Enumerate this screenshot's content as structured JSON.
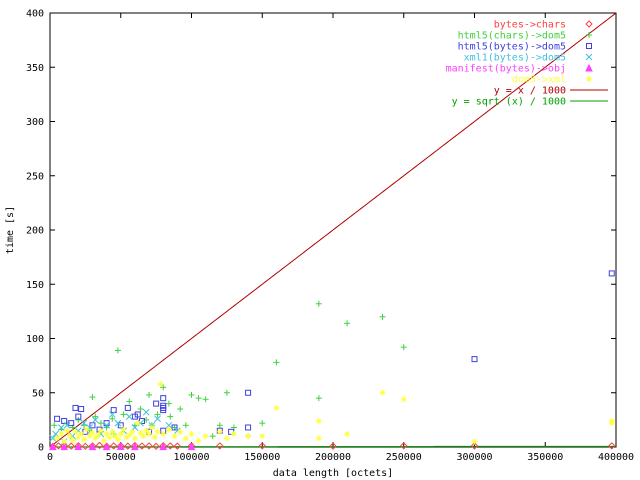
{
  "chart_data": {
    "type": "scatter",
    "xlabel": "data length [octets]",
    "ylabel": "time [s]",
    "xlim": [
      0,
      400000
    ],
    "ylim": [
      0,
      400
    ],
    "x_ticks": [
      0,
      50000,
      100000,
      150000,
      200000,
      250000,
      300000,
      350000,
      400000
    ],
    "y_ticks": [
      0,
      50,
      100,
      150,
      200,
      250,
      300,
      350,
      400
    ],
    "grid": false,
    "legend_position": "top-right",
    "series": [
      {
        "name": "bytes->chars",
        "marker": "diamond",
        "color": "#ff4040",
        "points": [
          [
            2000,
            0.5
          ],
          [
            6000,
            1
          ],
          [
            10000,
            1
          ],
          [
            15000,
            0.8
          ],
          [
            20000,
            1.2
          ],
          [
            25000,
            0.6
          ],
          [
            30000,
            1
          ],
          [
            35000,
            1.5
          ],
          [
            40000,
            0.7
          ],
          [
            45000,
            1
          ],
          [
            50000,
            1
          ],
          [
            55000,
            0.8
          ],
          [
            60000,
            1.3
          ],
          [
            65000,
            0.9
          ],
          [
            70000,
            1
          ],
          [
            75000,
            0.6
          ],
          [
            80000,
            1.2
          ],
          [
            85000,
            1
          ],
          [
            90000,
            0.8
          ],
          [
            100000,
            1
          ],
          [
            120000,
            1
          ],
          [
            150000,
            1
          ],
          [
            200000,
            0.8
          ],
          [
            250000,
            1.1
          ],
          [
            300000,
            1
          ],
          [
            397000,
            1
          ]
        ]
      },
      {
        "name": "html5(chars)->dom5",
        "marker": "plus",
        "color": "#40d040",
        "points": [
          [
            48000,
            89
          ],
          [
            3000,
            20
          ],
          [
            8000,
            16
          ],
          [
            12000,
            22
          ],
          [
            16000,
            18
          ],
          [
            20000,
            25
          ],
          [
            24000,
            20
          ],
          [
            28000,
            15
          ],
          [
            32000,
            28
          ],
          [
            36000,
            22
          ],
          [
            40000,
            18
          ],
          [
            44000,
            26
          ],
          [
            52000,
            30
          ],
          [
            56000,
            42
          ],
          [
            60000,
            20
          ],
          [
            64000,
            35
          ],
          [
            68000,
            25
          ],
          [
            72000,
            20
          ],
          [
            76000,
            30
          ],
          [
            80000,
            55
          ],
          [
            84000,
            40
          ],
          [
            88000,
            18
          ],
          [
            92000,
            35
          ],
          [
            96000,
            20
          ],
          [
            100000,
            48
          ],
          [
            105000,
            45
          ],
          [
            110000,
            44
          ],
          [
            115000,
            10
          ],
          [
            120000,
            20
          ],
          [
            125000,
            50
          ],
          [
            130000,
            18
          ],
          [
            140000,
            10
          ],
          [
            150000,
            22
          ],
          [
            160000,
            78
          ],
          [
            190000,
            132
          ],
          [
            190000,
            45
          ],
          [
            210000,
            114
          ],
          [
            235000,
            120
          ],
          [
            250000,
            92
          ],
          [
            30000,
            46
          ],
          [
            45000,
            12
          ],
          [
            70000,
            48
          ],
          [
            85000,
            28
          ]
        ]
      },
      {
        "name": "html5(bytes)->dom5",
        "marker": "square",
        "color": "#4040e0",
        "points": [
          [
            18000,
            36
          ],
          [
            22000,
            35
          ],
          [
            20000,
            28
          ],
          [
            15000,
            22
          ],
          [
            25000,
            14
          ],
          [
            30000,
            20
          ],
          [
            35000,
            16
          ],
          [
            45000,
            34
          ],
          [
            55000,
            36
          ],
          [
            60000,
            28
          ],
          [
            62000,
            30
          ],
          [
            70000,
            14
          ],
          [
            75000,
            40
          ],
          [
            80000,
            45
          ],
          [
            80000,
            38
          ],
          [
            80000,
            36
          ],
          [
            80000,
            34
          ],
          [
            80000,
            15
          ],
          [
            10000,
            24
          ],
          [
            5000,
            26
          ],
          [
            40000,
            22
          ],
          [
            50000,
            20
          ],
          [
            65000,
            24
          ],
          [
            88000,
            18
          ],
          [
            120000,
            15
          ],
          [
            128000,
            14
          ],
          [
            140000,
            50
          ],
          [
            140000,
            18
          ],
          [
            300000,
            81
          ],
          [
            397000,
            160
          ]
        ]
      },
      {
        "name": "xml1(bytes)->dom5",
        "marker": "cross",
        "color": "#40c0e0",
        "points": [
          [
            4000,
            12
          ],
          [
            8000,
            18
          ],
          [
            12000,
            20
          ],
          [
            16000,
            10
          ],
          [
            20000,
            15
          ],
          [
            24000,
            22
          ],
          [
            28000,
            18
          ],
          [
            32000,
            25
          ],
          [
            36000,
            12
          ],
          [
            40000,
            20
          ],
          [
            44000,
            30
          ],
          [
            48000,
            22
          ],
          [
            52000,
            15
          ],
          [
            56000,
            28
          ],
          [
            60000,
            18
          ],
          [
            64000,
            22
          ],
          [
            68000,
            32
          ],
          [
            72000,
            20
          ],
          [
            76000,
            26
          ],
          [
            84000,
            20
          ],
          [
            90000,
            15
          ],
          [
            2000,
            8
          ],
          [
            10000,
            5
          ]
        ]
      },
      {
        "name": "manifest(bytes)->obj",
        "marker": "triangle",
        "color": "#ff40ff",
        "points": [
          [
            2000,
            0.3
          ],
          [
            10000,
            0.4
          ],
          [
            20000,
            0.5
          ],
          [
            30000,
            0.3
          ],
          [
            40000,
            0.4
          ],
          [
            50000,
            0.5
          ],
          [
            60000,
            0.3
          ],
          [
            80000,
            0.4
          ],
          [
            100000,
            0.3
          ]
        ]
      },
      {
        "name": "dom5->xml",
        "marker": "star",
        "color": "#ffff40",
        "points": [
          [
            5000,
            8
          ],
          [
            8000,
            12
          ],
          [
            10000,
            5
          ],
          [
            12000,
            15
          ],
          [
            14000,
            10
          ],
          [
            16000,
            6
          ],
          [
            18000,
            14
          ],
          [
            20000,
            9
          ],
          [
            22000,
            12
          ],
          [
            24000,
            7
          ],
          [
            26000,
            16
          ],
          [
            28000,
            10
          ],
          [
            30000,
            13
          ],
          [
            32000,
            8
          ],
          [
            34000,
            11
          ],
          [
            36000,
            15
          ],
          [
            38000,
            6
          ],
          [
            40000,
            12
          ],
          [
            42000,
            9
          ],
          [
            44000,
            14
          ],
          [
            46000,
            10
          ],
          [
            48000,
            7
          ],
          [
            50000,
            12
          ],
          [
            52000,
            16
          ],
          [
            54000,
            9
          ],
          [
            56000,
            11
          ],
          [
            58000,
            14
          ],
          [
            60000,
            8
          ],
          [
            62000,
            22
          ],
          [
            64000,
            13
          ],
          [
            66000,
            10
          ],
          [
            68000,
            15
          ],
          [
            70000,
            12
          ],
          [
            72000,
            18
          ],
          [
            74000,
            9
          ],
          [
            76000,
            14
          ],
          [
            78000,
            58
          ],
          [
            80000,
            12
          ],
          [
            84000,
            16
          ],
          [
            88000,
            10
          ],
          [
            92000,
            14
          ],
          [
            96000,
            8
          ],
          [
            100000,
            12
          ],
          [
            105000,
            6
          ],
          [
            110000,
            10
          ],
          [
            120000,
            14
          ],
          [
            125000,
            8
          ],
          [
            130000,
            12
          ],
          [
            140000,
            10
          ],
          [
            150000,
            10
          ],
          [
            160000,
            36
          ],
          [
            190000,
            24
          ],
          [
            190000,
            8
          ],
          [
            210000,
            12
          ],
          [
            235000,
            50
          ],
          [
            250000,
            44
          ],
          [
            300000,
            5
          ],
          [
            397000,
            22
          ],
          [
            397000,
            24
          ]
        ]
      },
      {
        "name": "y = x / 1000",
        "marker": "line",
        "color": "#b00000",
        "function": "linear"
      },
      {
        "name": "y = sqrt (x) / 1000",
        "marker": "line",
        "color": "#00a000",
        "function": "sqrt"
      }
    ]
  }
}
